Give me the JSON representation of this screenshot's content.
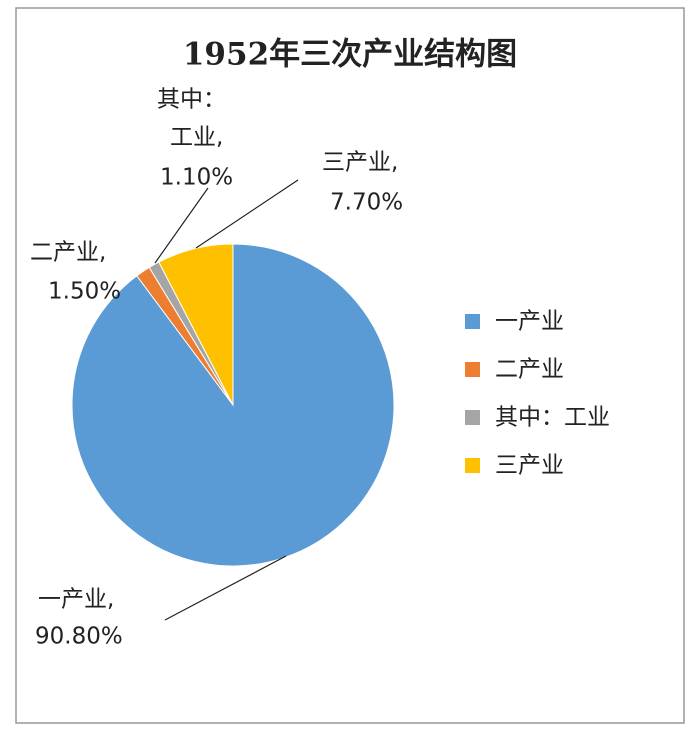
{
  "chart_data": {
    "type": "pie",
    "title": "1952年三次产业结构图",
    "categories": [
      "一产业",
      "二产业",
      "其中：工业",
      "三产业"
    ],
    "values": [
      90.8,
      1.5,
      1.1,
      7.7
    ],
    "value_labels": [
      "90.80%",
      "1.50%",
      "1.10%",
      "7.70%"
    ],
    "label_lines": [
      [
        "一产业,"
      ],
      [
        "二产业,"
      ],
      [
        "其中：",
        "工业,"
      ],
      [
        "三产业,"
      ]
    ],
    "colors": [
      "#5b9bd5",
      "#ed7d31",
      "#a5a5a5",
      "#ffc000"
    ],
    "legend": "right"
  }
}
